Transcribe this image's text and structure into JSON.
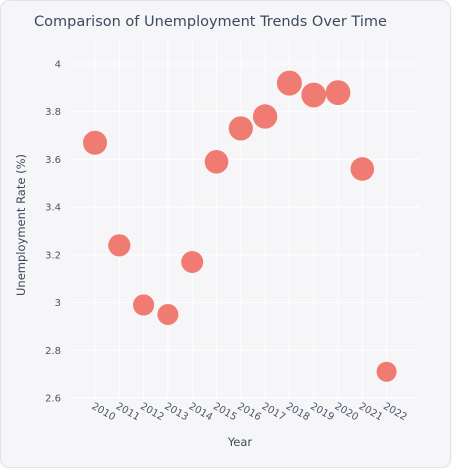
{
  "chart_data": {
    "type": "scatter",
    "title": "Comparison of Unemployment Trends Over Time",
    "xlabel": "Year",
    "ylabel": "Unemployment Rate (%)",
    "x": [
      "2010",
      "2011",
      "2012",
      "2013",
      "2014",
      "2015",
      "2016",
      "2017",
      "2018",
      "2019",
      "2020",
      "2021",
      "2022"
    ],
    "y": [
      3.67,
      3.24,
      2.99,
      2.95,
      3.17,
      3.59,
      3.73,
      3.78,
      3.92,
      3.87,
      3.88,
      3.56,
      2.71
    ],
    "yticks": [
      "2.6",
      "2.8",
      "3",
      "3.2",
      "3.4",
      "3.6",
      "3.8",
      "4"
    ],
    "ylim": [
      2.6,
      4.05
    ],
    "grid": true,
    "marker_color": "#f07b72"
  }
}
